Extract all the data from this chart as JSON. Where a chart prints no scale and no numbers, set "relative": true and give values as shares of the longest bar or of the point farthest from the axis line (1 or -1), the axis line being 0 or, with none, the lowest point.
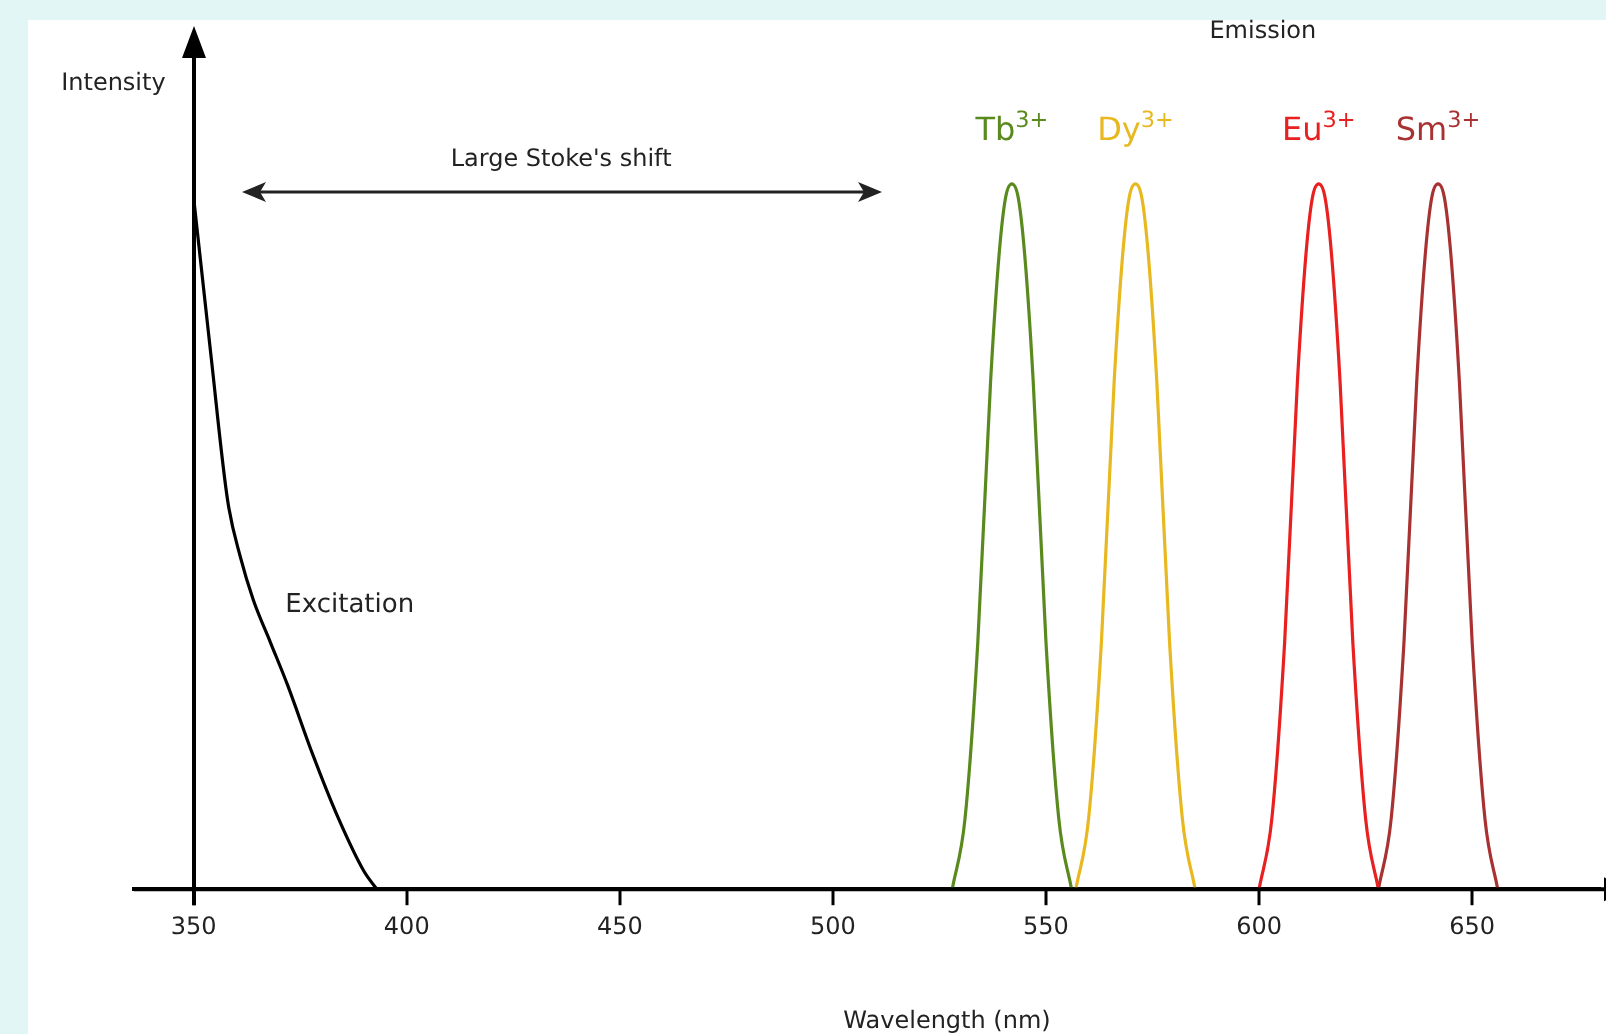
{
  "chart_data": {
    "type": "line",
    "xlabel": "Wavelength (nm)",
    "ylabel": "Intensity",
    "relative": true,
    "xlim": [
      336,
      680
    ],
    "xticks": [
      350,
      400,
      450,
      500,
      550,
      600,
      650
    ],
    "grid": false,
    "legend": false,
    "marker": "none",
    "line_style": "solid",
    "annotations": [
      "Emission",
      "Large Stoke's shift"
    ],
    "series": [
      {
        "name": "Excitation",
        "color": "#000000",
        "x": [
          350,
          354,
          358,
          361,
          364,
          368,
          372,
          378,
          384,
          390,
          393
        ],
        "values": [
          0.98,
          0.76,
          0.55,
          0.47,
          0.41,
          0.35,
          0.29,
          0.19,
          0.1,
          0.025,
          0
        ]
      },
      {
        "name": "Tb$^{3+}$",
        "color": "#5a8a1e",
        "x": [
          528,
          531,
          534,
          537,
          539,
          540.5,
          542,
          543.5,
          545,
          547,
          550,
          553,
          556
        ],
        "values": [
          0,
          0.1,
          0.35,
          0.72,
          0.9,
          0.98,
          1,
          0.98,
          0.9,
          0.72,
          0.35,
          0.1,
          0
        ]
      },
      {
        "name": "Dy$^{3+}$",
        "color": "#e8b820",
        "x": [
          557,
          560,
          563,
          566,
          568,
          569.5,
          571,
          572.5,
          574,
          576,
          579,
          582,
          585
        ],
        "values": [
          0,
          0.1,
          0.35,
          0.72,
          0.9,
          0.98,
          1,
          0.98,
          0.9,
          0.72,
          0.35,
          0.1,
          0
        ]
      },
      {
        "name": "Eu$^{3+}$",
        "color": "#e82020",
        "x": [
          600,
          603,
          606,
          609,
          611,
          612.5,
          614,
          615.5,
          617,
          619,
          622,
          625,
          628
        ],
        "values": [
          0,
          0.1,
          0.35,
          0.72,
          0.9,
          0.98,
          1,
          0.98,
          0.9,
          0.72,
          0.35,
          0.1,
          0
        ]
      },
      {
        "name": "Sm$^{3+}$",
        "color": "#a83232",
        "x": [
          628,
          631,
          634,
          637,
          639,
          640.5,
          642,
          643.5,
          645,
          647,
          650,
          653,
          656
        ],
        "values": [
          0,
          0.1,
          0.35,
          0.72,
          0.9,
          0.98,
          1,
          0.98,
          0.9,
          0.72,
          0.35,
          0.1,
          0
        ]
      }
    ]
  }
}
